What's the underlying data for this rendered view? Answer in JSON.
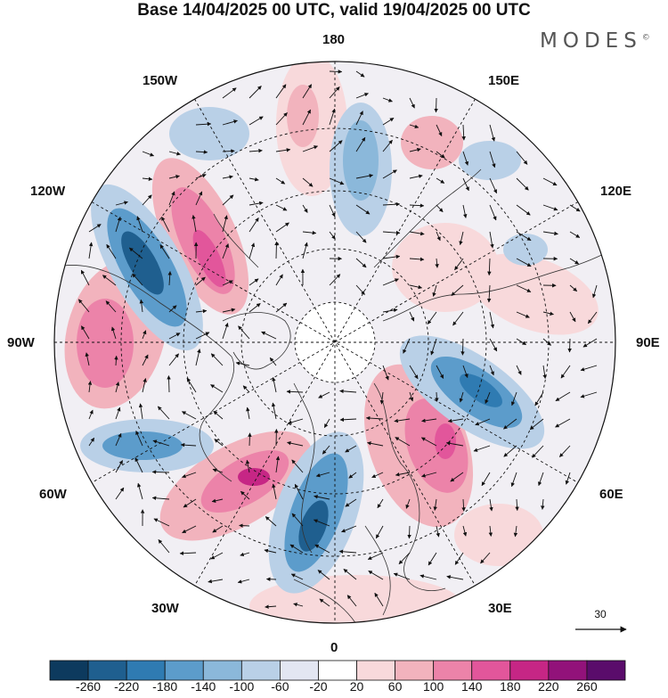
{
  "title": "Base 14/04/2025 00 UTC, valid 19/04/2025 00 UTC",
  "logo": {
    "text": "MODES",
    "mark": "©"
  },
  "longitude_labels": {
    "top": "180",
    "bottom": "0",
    "left": "90W",
    "right": "90E",
    "upper_left": "150W",
    "upper_right": "150E",
    "mid_upper_left": "120W",
    "mid_upper_right": "120E",
    "lower_left": "60W",
    "lower_right": "60E",
    "bottom_left": "30W",
    "bottom_right": "30E"
  },
  "reference_vector": {
    "label": "30"
  },
  "colorbar": {
    "colors": [
      "#0d3a5e",
      "#1f5f8f",
      "#2f7bb2",
      "#5c9ccb",
      "#8bb8da",
      "#b9d0e7",
      "#e3e6f2",
      "#ffffff",
      "#f8d9db",
      "#f2b3bd",
      "#ec83a9",
      "#e2569b",
      "#c62685",
      "#92127a",
      "#5a0c6b"
    ],
    "tick_labels": [
      "-260",
      "-220",
      "-180",
      "-140",
      "-100",
      "-60",
      "-20",
      "20",
      "60",
      "100",
      "140",
      "180",
      "220",
      "260"
    ]
  }
}
